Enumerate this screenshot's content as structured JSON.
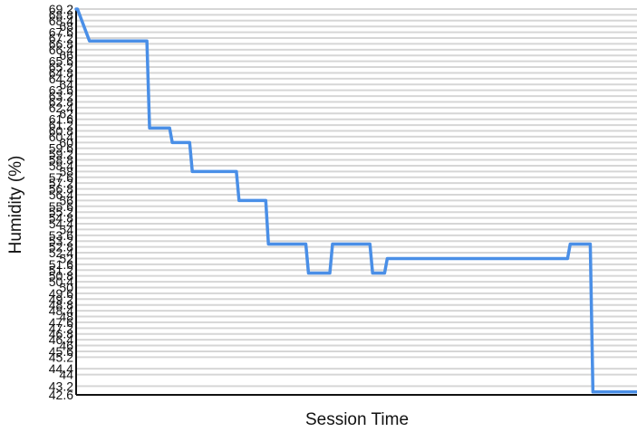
{
  "chart_data": {
    "type": "line",
    "title": "",
    "xlabel": "Session Time",
    "ylabel": "Humidity (%)",
    "ylim": [
      42.6,
      69.2
    ],
    "grid": true,
    "grid_axis": "y",
    "y_ticks": [
      42.6,
      43.2,
      44,
      44.4,
      45.2,
      45.6,
      46,
      46.4,
      46.8,
      47.2,
      47.6,
      48,
      48.4,
      48.8,
      49.2,
      49.6,
      50,
      50.4,
      50.8,
      51.2,
      51.6,
      52,
      52.4,
      52.8,
      53.2,
      53.6,
      54,
      54.4,
      54.8,
      55.2,
      55.6,
      56,
      56.4,
      56.8,
      57.2,
      57.6,
      58,
      58.4,
      58.8,
      59.2,
      59.6,
      60,
      60.4,
      60.8,
      61.2,
      61.6,
      62,
      62.4,
      62.8,
      63.2,
      63.6,
      64,
      64.4,
      64.8,
      65.2,
      65.6,
      66,
      66.4,
      66.8,
      67.2,
      67.6,
      68,
      68.4,
      68.8,
      69.2
    ],
    "x": [
      0,
      0.1,
      1,
      5.3,
      5.5,
      7,
      7.2,
      8.5,
      8.7,
      12,
      12.2,
      14.2,
      14.4,
      16,
      16.2,
      17.2,
      17.4,
      19,
      19.2,
      22,
      22.2,
      23.1,
      23.3,
      24.5,
      24.7,
      36.8,
      37,
      38.5,
      38.7,
      42
    ],
    "series": [
      {
        "color": "#4a8fe7",
        "values": [
          69.2,
          69.2,
          67.0,
          67.0,
          61.0,
          61.0,
          60.0,
          60.0,
          58.0,
          58.0,
          56.0,
          56.0,
          53.0,
          53.0,
          53.0,
          53.0,
          51.0,
          51.0,
          53.0,
          53.0,
          51.0,
          51.0,
          52.0,
          52.0,
          52.0,
          52.0,
          53.0,
          53.0,
          42.8,
          42.8
        ]
      }
    ],
    "legend": "none"
  }
}
